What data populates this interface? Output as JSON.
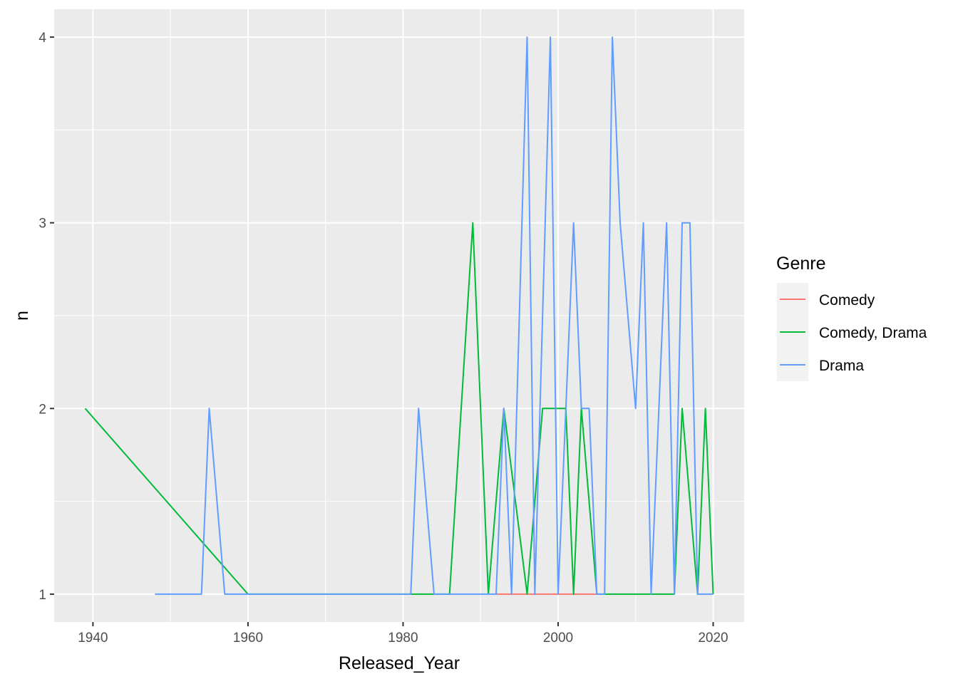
{
  "chart_data": {
    "type": "line",
    "title": "",
    "xlabel": "Released_Year",
    "ylabel": "n",
    "xlim": [
      1935,
      2024
    ],
    "ylim": [
      0.85,
      4.15
    ],
    "x_ticks": [
      1940,
      1960,
      1980,
      2000,
      2020
    ],
    "x_tick_labels": [
      "1940",
      "1960",
      "1980",
      "2000",
      "2020"
    ],
    "y_ticks": [
      1,
      2,
      3,
      4
    ],
    "y_tick_labels": [
      "1",
      "2",
      "3",
      "4"
    ],
    "grid": true,
    "background": "#ebebeb",
    "legend": {
      "title": "Genre",
      "placement": "right"
    },
    "series": [
      {
        "name": "Comedy",
        "color": "#f8766d",
        "x": [
          1992,
          1996,
          1997,
          2000,
          2001,
          2002,
          2004,
          2005
        ],
        "y": [
          1,
          1,
          1,
          1,
          1,
          1,
          1,
          1
        ]
      },
      {
        "name": "Comedy, Drama",
        "color": "#00ba38",
        "x": [
          1939,
          1960,
          1981,
          1986,
          1989,
          1991,
          1993,
          1996,
          1998,
          2001,
          2002,
          2003,
          2005,
          2015,
          2016,
          2018,
          2019,
          2020
        ],
        "y": [
          2,
          1,
          1,
          1,
          3,
          1,
          2,
          1,
          2,
          2,
          1,
          2,
          1,
          1,
          2,
          1,
          2,
          1
        ]
      },
      {
        "name": "Drama",
        "color": "#619cff",
        "x": [
          1948,
          1954,
          1955,
          1957,
          1981,
          1982,
          1984,
          1992,
          1993,
          1994,
          1996,
          1997,
          1999,
          2000,
          2002,
          2003,
          2004,
          2005,
          2006,
          2007,
          2008,
          2010,
          2011,
          2012,
          2014,
          2015,
          2016,
          2017,
          2018,
          2019,
          2020
        ],
        "y": [
          1,
          1,
          2,
          1,
          1,
          2,
          1,
          1,
          2,
          1,
          4,
          1,
          4,
          1,
          3,
          2,
          2,
          1,
          1,
          4,
          3,
          2,
          3,
          1,
          3,
          1,
          3,
          3,
          1,
          1,
          1
        ]
      }
    ]
  }
}
